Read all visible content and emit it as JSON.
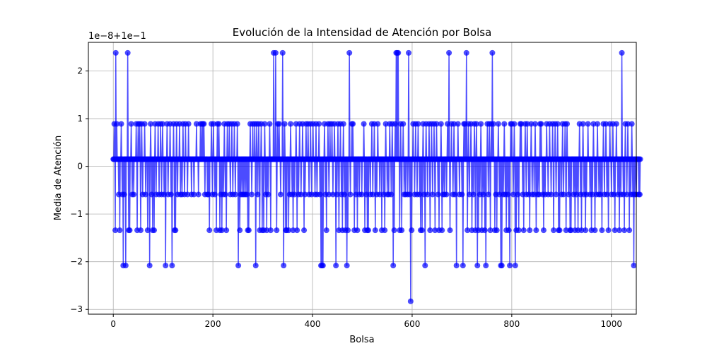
{
  "chart_data": {
    "type": "line",
    "title": "Evolución de la Intensidad de Atención por Bolsa",
    "xlabel": "Bolsa",
    "ylabel": "Media de Atención",
    "y_offset_label": "1e−8+1e−1",
    "xlim": [
      -50,
      1050
    ],
    "ylim": [
      -3.1,
      2.6
    ],
    "x_ticks": [
      0,
      200,
      400,
      600,
      800,
      1000
    ],
    "y_ticks": [
      -3,
      -2,
      -1,
      0,
      1,
      2
    ],
    "grid": true,
    "marker": "circle",
    "series_color": "#0000ff",
    "levels": [
      2.38,
      0.89,
      0.15,
      -0.59,
      -1.34,
      -2.08,
      -2.83
    ],
    "series": [
      {
        "x_start": 0,
        "x_step": 1,
        "values": [
          0.15,
          0.15,
          0.89,
          0.15,
          -1.34,
          2.38,
          0.15,
          0.89,
          0.15,
          0.15,
          0.15,
          -0.59,
          0.15,
          -1.34,
          0.15,
          0.15,
          0.89,
          0.15,
          -0.59,
          0.15,
          -2.08,
          0.15,
          -0.59,
          0.15,
          0.15,
          -2.08,
          0.15,
          0.15,
          0.15,
          2.38,
          0.15,
          -1.34,
          0.15,
          -1.34,
          0.15,
          0.15,
          0.89,
          0.15,
          -0.59,
          0.15,
          0.15,
          -0.59,
          0.15,
          0.15,
          0.15,
          0.15,
          0.89,
          0.15,
          -1.34,
          0.15,
          0.89,
          0.15,
          0.15,
          0.89,
          0.15,
          -1.34,
          0.15,
          0.89,
          0.15,
          -0.59,
          0.15,
          0.15,
          0.15,
          0.89,
          0.15,
          -0.59,
          0.15,
          0.15,
          0.15,
          -1.34,
          0.15,
          0.15,
          0.15,
          -2.08,
          0.15,
          0.89,
          0.15,
          -0.59,
          0.15,
          -1.34,
          0.15,
          0.15,
          -1.34,
          0.15,
          0.89,
          0.15,
          -0.59,
          0.15,
          0.15,
          0.15,
          0.89,
          0.15,
          -0.59,
          0.15,
          0.15,
          0.89,
          0.15,
          -0.59,
          0.15,
          0.89,
          0.15,
          0.15,
          -0.59,
          0.15,
          0.15,
          -2.08,
          0.15,
          0.15,
          0.89,
          0.15,
          -0.59,
          0.15,
          0.15,
          0.15,
          0.89,
          0.15,
          -0.59,
          0.15,
          -2.08,
          0.15,
          0.15,
          0.89,
          0.15,
          -1.34,
          0.15,
          -1.34,
          0.15,
          0.89,
          0.15,
          -0.59,
          0.15,
          0.15,
          0.15,
          0.89,
          0.15,
          -0.59,
          0.15,
          0.15,
          -0.59,
          0.15,
          0.89,
          0.15,
          0.15,
          -0.59,
          0.15,
          0.89,
          0.15,
          0.15,
          0.15,
          -0.59,
          0.15,
          0.89,
          0.15,
          0.15,
          0.15,
          0.15,
          0.15,
          -0.59,
          0.15,
          0.15,
          0.15,
          0.15,
          -0.59,
          0.15,
          0.15,
          0.15,
          0.15,
          0.89,
          0.15,
          0.15,
          0.15,
          -0.59,
          0.15,
          0.15,
          0.15,
          0.89,
          0.15,
          0.15,
          0.89,
          0.15,
          0.89,
          0.15,
          0.89,
          0.15,
          -0.59,
          0.15,
          0.15,
          0.15,
          0.15,
          -0.59,
          0.15,
          -0.59,
          0.15,
          -1.34,
          0.15,
          0.15,
          0.15,
          0.89,
          0.15,
          -0.59,
          0.15,
          0.89,
          0.15,
          0.15,
          -0.59,
          0.15,
          0.15,
          -1.34,
          0.15,
          0.89,
          0.15,
          0.15,
          0.89,
          0.15,
          -1.34,
          0.15,
          -0.59,
          0.15,
          -1.34,
          0.15,
          0.15,
          -0.59,
          0.15,
          0.89,
          0.15,
          -0.59,
          0.15,
          -1.34,
          0.15,
          0.89,
          0.15,
          0.15,
          0.15,
          0.89,
          0.15,
          -0.59,
          0.15,
          0.15,
          0.89,
          0.15,
          -0.59,
          0.15,
          0.15,
          0.89,
          0.15,
          -0.59,
          0.15,
          0.15,
          0.15,
          0.89,
          0.15,
          -2.08,
          0.15,
          0.15,
          -1.34,
          0.15,
          -0.59,
          0.15,
          0.15,
          -0.59,
          0.15,
          0.15,
          -0.59,
          0.15,
          0.15,
          -0.59,
          0.15,
          0.15,
          -0.59,
          0.15,
          -1.34,
          0.15,
          -1.34,
          0.15,
          0.15,
          0.89,
          0.15,
          0.15,
          -0.59,
          0.15,
          0.89,
          0.15,
          0.15,
          0.15,
          0.89,
          0.15,
          -2.08,
          0.15,
          0.89,
          0.15,
          -0.59,
          0.15,
          0.89,
          0.15,
          -1.34,
          0.15,
          0.15,
          0.89,
          0.15,
          -1.34,
          0.15,
          0.15,
          -1.34,
          0.15,
          0.89,
          0.15,
          -0.59,
          0.15,
          -1.34,
          0.15,
          0.15,
          -0.59,
          0.15,
          0.15,
          0.89,
          0.15,
          -1.34,
          0.15,
          0.15,
          0.15,
          0.15,
          0.15,
          2.38,
          0.15,
          0.15,
          0.15,
          2.38,
          0.15,
          -1.34,
          0.15,
          0.89,
          0.15,
          0.15,
          0.89,
          0.15,
          0.15,
          -0.59,
          0.15,
          0.15,
          0.15,
          2.38,
          0.15,
          -2.08,
          0.15,
          0.89,
          0.15,
          -1.34,
          0.15,
          -1.34,
          0.15,
          0.15,
          0.15,
          -1.34,
          0.15,
          -0.59,
          0.15,
          0.89,
          0.15,
          0.15,
          -0.59,
          0.15,
          -1.34,
          0.15,
          0.15,
          -0.59,
          0.15,
          0.15,
          0.89,
          0.15,
          -1.34,
          0.15,
          0.15,
          -0.59,
          0.15,
          0.89,
          0.15,
          0.15,
          -0.59,
          0.15,
          0.15,
          0.89,
          0.15,
          0.15,
          -1.34,
          0.15,
          -0.59,
          0.15,
          0.89,
          0.15,
          0.15,
          0.15,
          0.89,
          0.15,
          -0.59,
          0.15,
          0.15,
          0.89,
          0.15,
          -0.59,
          0.15,
          0.15,
          0.89,
          0.15,
          0.15,
          0.15,
          -0.59,
          0.15,
          0.89,
          0.15,
          -0.59,
          0.15,
          0.15,
          0.15,
          0.89,
          0.15,
          -0.59,
          0.15,
          -2.08,
          0.15,
          -2.08,
          0.15,
          -2.08,
          0.15,
          0.15,
          0.89,
          0.15,
          -0.59,
          0.15,
          -1.34,
          0.15,
          0.15,
          0.89,
          0.15,
          -0.59,
          0.15,
          0.89,
          0.15,
          0.15,
          0.15,
          0.89,
          0.15,
          -0.59,
          0.15,
          0.15,
          0.89,
          0.15,
          0.15,
          -2.08,
          0.15,
          -0.59,
          0.15,
          0.89,
          0.15,
          -1.34,
          0.15,
          0.15,
          0.89,
          0.15,
          -0.59,
          0.15,
          -1.34,
          0.15,
          0.89,
          0.15,
          -0.59,
          0.15,
          -1.34,
          0.15,
          0.15,
          -2.08,
          0.15,
          -1.34,
          0.15,
          0.15,
          2.38,
          0.15,
          -0.59,
          0.15,
          0.15,
          0.89,
          0.15,
          0.89,
          0.15,
          0.15,
          -1.34,
          0.15,
          0.15,
          -0.59,
          0.15,
          0.15,
          -1.34,
          0.15,
          0.15,
          0.15,
          -0.59,
          0.15,
          0.15,
          0.15,
          0.15,
          -0.59,
          0.15,
          0.15,
          0.15,
          0.89,
          0.15,
          -1.34,
          0.15,
          0.15,
          -0.59,
          0.15,
          -1.34,
          0.15,
          -1.34,
          0.15,
          0.15,
          0.15,
          -0.59,
          0.15,
          0.15,
          0.89,
          0.15,
          -0.59,
          0.15,
          0.15,
          0.89,
          0.15,
          -1.34,
          0.15,
          0.15,
          -0.59,
          0.15,
          0.89,
          0.15,
          0.15,
          0.15,
          -0.59,
          0.15,
          0.15,
          0.15,
          -1.34,
          0.15,
          0.15,
          0.15,
          -0.59,
          0.15,
          -1.34,
          0.15,
          0.89,
          0.15,
          0.15,
          -0.59,
          0.15,
          0.15,
          -0.59,
          0.15,
          0.89,
          0.15,
          0.15,
          -0.59,
          0.15,
          0.89,
          0.15,
          -2.08,
          0.15,
          -1.34,
          0.15,
          0.89,
          0.15,
          2.38,
          0.15,
          2.38,
          0.15,
          2.38,
          0.15,
          0.15,
          -1.34,
          0.15,
          0.89,
          0.15,
          -1.34,
          0.15,
          0.15,
          0.89,
          0.15,
          -0.59,
          0.15,
          0.15,
          -0.59,
          0.15,
          0.15,
          0.15,
          -0.59,
          0.15,
          2.38,
          0.15,
          -0.59,
          0.15,
          -2.83,
          0.15,
          -1.34,
          0.15,
          0.15,
          0.89,
          0.15,
          0.15,
          -0.59,
          0.15,
          0.89,
          0.15,
          0.15,
          -0.59,
          0.15,
          0.89,
          0.15,
          0.15,
          -0.59,
          0.15,
          -1.34,
          0.15,
          0.15,
          -1.34,
          0.15,
          0.89,
          0.15,
          -0.59,
          0.15,
          -2.08,
          0.15,
          0.89,
          0.15,
          0.15,
          -0.59,
          0.15,
          0.15,
          0.89,
          0.15,
          -1.34,
          0.15,
          0.15,
          0.89,
          0.15,
          -0.59,
          0.15,
          0.15,
          0.89,
          0.15,
          -1.34,
          0.15,
          0.15,
          0.89,
          0.15,
          0.15,
          -0.59,
          0.15,
          -1.34,
          0.15,
          0.15,
          0.15,
          0.89,
          0.15,
          -1.34,
          0.15,
          -0.59,
          0.15,
          0.15,
          -0.59,
          0.15,
          0.15,
          0.15,
          -0.59,
          0.15,
          0.89,
          0.15,
          0.15,
          2.38,
          0.15,
          -1.34,
          0.15,
          0.15,
          0.89,
          0.15,
          0.15,
          -0.59,
          0.15,
          0.89,
          0.15,
          -0.59,
          0.15,
          0.15,
          -2.08,
          0.15,
          0.15,
          0.89,
          0.15,
          0.15,
          -0.59,
          0.15,
          0.15,
          0.15,
          0.15,
          -0.59,
          0.15,
          -2.08,
          0.15,
          0.89,
          0.15,
          0.89,
          0.15,
          0.15,
          2.38,
          0.15,
          -1.34,
          0.15,
          0.89,
          0.15,
          -0.59,
          0.15,
          0.15,
          0.89,
          0.15,
          -1.34,
          0.15,
          0.15,
          -0.59,
          0.15,
          0.89,
          0.15,
          -1.34,
          0.15,
          0.89,
          0.15,
          -2.08,
          0.15,
          -1.34,
          0.15,
          0.15,
          -0.59,
          0.15,
          0.89,
          0.15,
          -1.34,
          0.15,
          0.15,
          -0.59,
          0.15,
          0.15,
          -1.34,
          0.15,
          -2.08,
          0.15,
          0.15,
          0.89,
          0.15,
          -0.59,
          0.15,
          0.89,
          0.15,
          -1.34,
          0.15,
          0.89,
          0.15,
          2.38,
          0.15,
          0.89,
          0.15,
          0.15,
          -1.34,
          0.15,
          -0.59,
          0.15,
          -1.34,
          0.15,
          0.15,
          0.89,
          0.15,
          -0.59,
          0.15,
          0.15,
          -2.08,
          0.15,
          -2.08,
          0.15,
          0.15,
          -0.59,
          0.15,
          0.89,
          0.15,
          -0.59,
          0.15,
          -1.34,
          0.15,
          0.15,
          -0.59,
          0.15,
          -1.34,
          0.15,
          -2.08,
          0.15,
          0.89,
          0.15,
          0.89,
          0.15,
          0.15,
          -0.59,
          0.15,
          0.89,
          0.15,
          -2.08,
          0.15,
          -1.34,
          0.15,
          0.15,
          -0.59,
          0.15,
          -1.34,
          0.15,
          0.15,
          0.89,
          0.15,
          0.89,
          0.15,
          0.15,
          -0.59,
          0.15,
          -1.34,
          0.15,
          0.15,
          0.89,
          0.15,
          -0.59,
          0.15,
          0.89,
          0.15,
          0.15,
          -0.59,
          0.15,
          -1.34,
          0.15,
          0.15,
          0.89,
          0.15,
          -0.59,
          0.15,
          0.15,
          0.15,
          -0.59,
          0.15,
          0.89,
          0.15,
          -1.34,
          0.15,
          0.15,
          -0.59,
          0.15,
          0.15,
          -0.59,
          0.15,
          0.89,
          0.15,
          0.89,
          0.15,
          0.15,
          -0.59,
          0.15,
          -1.34,
          0.15,
          0.15,
          -0.59,
          0.15,
          0.15,
          0.89,
          0.15,
          0.15,
          -0.59,
          0.15,
          0.15,
          0.89,
          0.15,
          0.15,
          -0.59,
          0.15,
          0.15,
          0.89,
          0.15,
          -1.34,
          0.15,
          0.15,
          0.89,
          0.15,
          -0.59,
          0.15,
          0.15,
          0.89,
          0.15,
          -1.34,
          0.15,
          -1.34,
          0.15,
          0.15,
          0.15,
          -0.59,
          0.15,
          0.89,
          0.15,
          -0.59,
          0.15,
          0.15,
          0.89,
          0.15,
          -1.34,
          0.15,
          0.89,
          0.15,
          0.15,
          -0.59,
          0.15,
          0.15,
          -1.34,
          0.15,
          -1.34,
          0.15,
          0.15,
          0.15,
          0.15,
          -0.59,
          0.15,
          0.15,
          -1.34,
          0.15,
          0.15,
          -0.59,
          0.15,
          0.15,
          -1.34,
          0.15,
          0.15,
          0.89,
          0.15,
          -0.59,
          0.15,
          -1.34,
          0.15,
          0.15,
          0.89,
          0.15,
          -0.59,
          0.15,
          0.15,
          -1.34,
          0.15,
          -0.59,
          0.15,
          0.15,
          0.89,
          0.15,
          0.15,
          0.15,
          -0.59,
          0.15,
          0.15,
          -1.34,
          0.15,
          -0.59,
          0.15,
          0.89,
          0.15,
          0.15,
          -1.34,
          0.15,
          0.15,
          -0.59,
          0.15,
          0.89,
          0.15,
          0.15,
          -0.59,
          0.15,
          0.15,
          -0.59,
          0.15,
          0.15,
          -1.34,
          0.15,
          0.15,
          0.89,
          0.15,
          -0.59,
          0.15,
          0.15,
          0.89,
          0.15,
          -0.59,
          0.15,
          0.15,
          -1.34,
          0.15,
          0.15,
          0.89,
          0.15,
          0.15,
          -0.59,
          0.15,
          0.15,
          0.89,
          0.15,
          -0.59,
          0.15,
          -1.34,
          0.15,
          0.15,
          0.89,
          0.15,
          0.15,
          -0.59,
          0.15,
          0.15,
          -1.34,
          0.15,
          0.15,
          -0.59,
          0.15,
          2.38,
          0.15,
          0.15,
          -0.59,
          0.15,
          -1.34,
          0.15,
          0.89,
          0.15,
          0.15,
          -0.59,
          0.15,
          0.89,
          0.15,
          0.15,
          -1.34,
          0.15,
          0.15,
          -0.59,
          0.15,
          0.89,
          0.15,
          -0.59,
          0.15,
          -2.08,
          0.15,
          -0.59,
          0.15,
          0.15,
          -0.59,
          0.15,
          0.15,
          0.15,
          0.15,
          -0.59,
          0.15,
          -0.59,
          0.15
        ]
      }
    ]
  }
}
